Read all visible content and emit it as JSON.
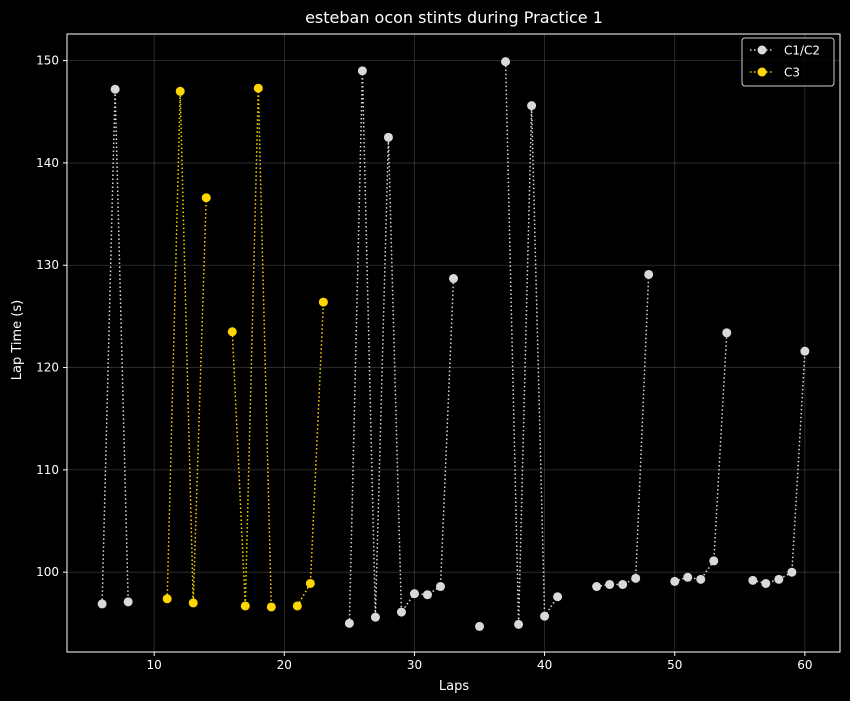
{
  "chart_data": {
    "type": "line",
    "title": "esteban ocon stints during Practice 1",
    "xlabel": "Laps",
    "ylabel": "Lap Time (s)",
    "xlim": [
      3.3,
      62.7
    ],
    "ylim": [
      92.2,
      152.6
    ],
    "xticks": [
      10,
      20,
      30,
      40,
      50,
      60
    ],
    "yticks": [
      100,
      110,
      120,
      130,
      140,
      150
    ],
    "grid": true,
    "legend_position": "top-right",
    "line_style": "dotted",
    "background": "#000000",
    "series": [
      {
        "name": "C1/C2",
        "color": "#d9d9d9",
        "segments": [
          [
            [
              6,
              96.9
            ],
            [
              7,
              147.2
            ],
            [
              8,
              97.1
            ]
          ],
          [
            [
              25,
              95.0
            ],
            [
              26,
              149.0
            ],
            [
              27,
              95.6
            ],
            [
              28,
              142.5
            ],
            [
              29,
              96.1
            ],
            [
              30,
              97.9
            ],
            [
              31,
              97.8
            ],
            [
              32,
              98.6
            ],
            [
              33,
              128.7
            ]
          ],
          [
            [
              35,
              94.7
            ]
          ],
          [
            [
              37,
              149.9
            ],
            [
              38,
              94.9
            ],
            [
              39,
              145.6
            ],
            [
              40,
              95.7
            ],
            [
              41,
              97.6
            ]
          ],
          [
            [
              44,
              98.6
            ],
            [
              45,
              98.8
            ],
            [
              46,
              98.8
            ],
            [
              47,
              99.4
            ],
            [
              48,
              129.1
            ]
          ],
          [
            [
              50,
              99.1
            ],
            [
              51,
              99.5
            ],
            [
              52,
              99.3
            ],
            [
              53,
              101.1
            ],
            [
              54,
              123.4
            ]
          ],
          [
            [
              56,
              99.2
            ],
            [
              57,
              98.9
            ],
            [
              58,
              99.3
            ],
            [
              59,
              100.0
            ],
            [
              60,
              121.6
            ]
          ]
        ]
      },
      {
        "name": "C3",
        "color": "#ffd700",
        "segments": [
          [
            [
              11,
              97.4
            ],
            [
              12,
              147.0
            ],
            [
              13,
              97.0
            ],
            [
              14,
              136.6
            ]
          ],
          [
            [
              16,
              123.5
            ],
            [
              17,
              96.7
            ],
            [
              18,
              147.3
            ],
            [
              19,
              96.6
            ]
          ],
          [
            [
              21,
              96.7
            ],
            [
              22,
              98.9
            ],
            [
              23,
              126.4
            ]
          ]
        ]
      }
    ]
  }
}
